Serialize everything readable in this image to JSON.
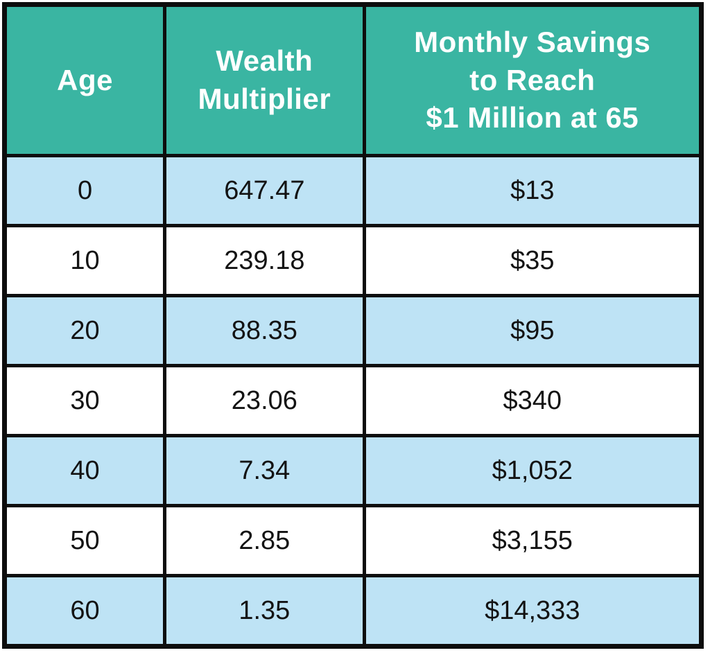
{
  "table": {
    "headers": {
      "age": "Age",
      "multiplier": "Wealth\nMultiplier",
      "savings": "Monthly Savings\nto Reach\n$1 Million at 65"
    },
    "rows": [
      [
        "0",
        "647.47",
        "$13"
      ],
      [
        "10",
        "239.18",
        "$35"
      ],
      [
        "20",
        "88.35",
        "$95"
      ],
      [
        "30",
        "23.06",
        "$340"
      ],
      [
        "40",
        "7.34",
        "$1,052"
      ],
      [
        "50",
        "2.85",
        "$3,155"
      ],
      [
        "60",
        "1.35",
        "$14,333"
      ]
    ]
  },
  "colors": {
    "header_bg": "#3ab5a2",
    "header_text": "#ffffff",
    "row_alt_bg": "#bee3f5",
    "row_bg": "#ffffff",
    "border": "#0d0d0d",
    "cell_text": "#131313"
  },
  "chart_data": {
    "type": "table",
    "columns": [
      "Age",
      "Wealth Multiplier",
      "Monthly Savings to Reach $1 Million at 65"
    ],
    "rows": [
      [
        0,
        647.47,
        "$13"
      ],
      [
        10,
        239.18,
        "$35"
      ],
      [
        20,
        88.35,
        "$95"
      ],
      [
        30,
        23.06,
        "$340"
      ],
      [
        40,
        7.34,
        "$1,052"
      ],
      [
        50,
        2.85,
        "$3,155"
      ],
      [
        60,
        1.35,
        "$14,333"
      ]
    ]
  }
}
